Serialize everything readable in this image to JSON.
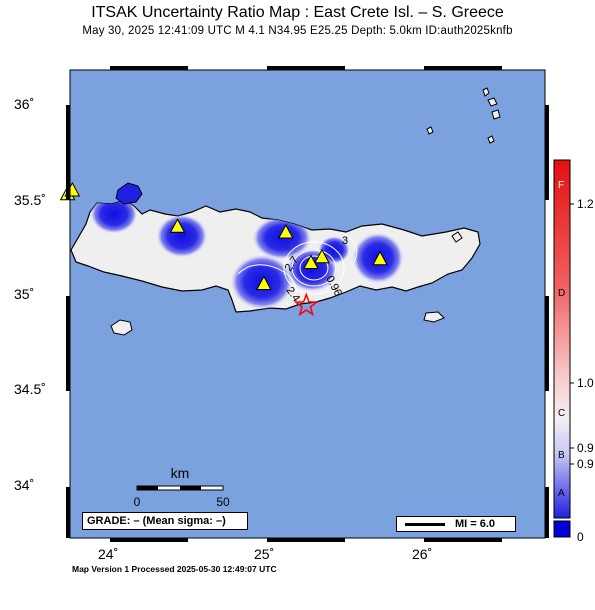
{
  "title": "ITSAK Uncertainty Ratio Map : East Crete Isl. – S. Greece",
  "subtitle": "May 30, 2025 12:41:09 UTC   M 4.1    N34.95 E25.25    Depth: 5.0km    ID:auth2025knfb",
  "footer": "Map Version 1 Processed 2025-05-30 12:49:07 UTC",
  "lat_labels": [
    "36˚",
    "35.5˚",
    "35˚",
    "34.5˚",
    "34˚"
  ],
  "lon_labels": [
    "24˚",
    "25˚",
    "26˚"
  ],
  "scale_bar": {
    "unit": "km",
    "start": "0",
    "end": "50"
  },
  "grade_box": "GRADE: – (Mean sigma: –)",
  "mi_legend": "MI = 6.0",
  "contour_labels": [
    "2.7",
    "2.4",
    "0.96",
    "3"
  ],
  "colorbar": {
    "grades": [
      "F",
      "D",
      "C",
      "B",
      "A"
    ],
    "values": [
      "1.2",
      "1.0",
      "0.9",
      "0.9",
      "0"
    ]
  },
  "colors": {
    "sea": "#7ba2de",
    "land": "#efefef",
    "low_ratio": "#1c1ce0",
    "station": "#ffff00",
    "epicenter": "#ff0000"
  },
  "stations": [
    {
      "lon": 23.73,
      "lat": 35.53
    },
    {
      "lon": 23.76,
      "lat": 35.55
    },
    {
      "lon": 24.43,
      "lat": 35.36
    },
    {
      "lon": 25.12,
      "lat": 35.33
    },
    {
      "lon": 25.35,
      "lat": 35.2
    },
    {
      "lon": 25.28,
      "lat": 35.17
    },
    {
      "lon": 25.72,
      "lat": 35.19
    },
    {
      "lon": 24.98,
      "lat": 35.06
    }
  ],
  "epicenter": {
    "lon": 25.25,
    "lat": 34.95
  }
}
